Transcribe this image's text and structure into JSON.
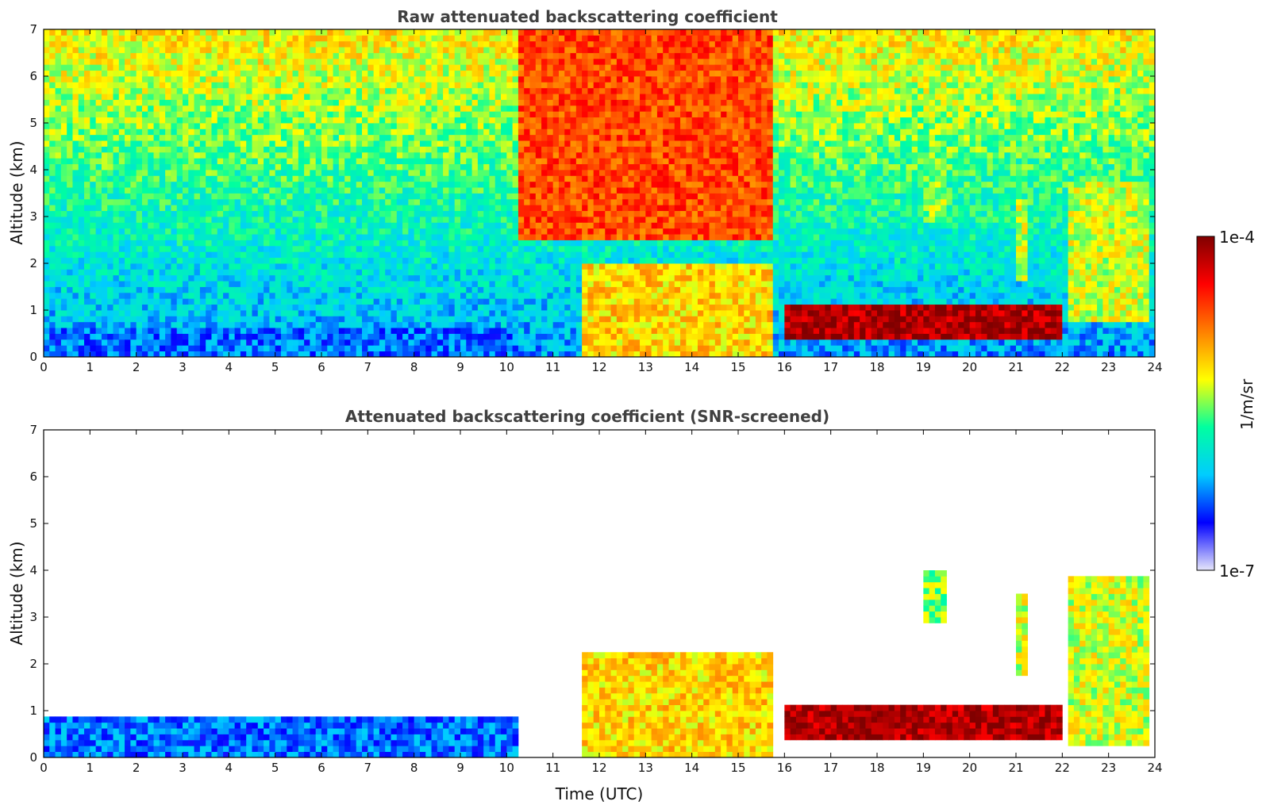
{
  "chart_data": [
    {
      "type": "heatmap",
      "title": "Raw attenuated backscattering coefficient",
      "xlabel": "",
      "ylabel": "Altitude (km)",
      "xlim": [
        0,
        24
      ],
      "ylim": [
        0,
        7
      ],
      "xticks": [
        "0",
        "1",
        "2",
        "3",
        "4",
        "5",
        "6",
        "7",
        "8",
        "9",
        "10",
        "11",
        "12",
        "13",
        "14",
        "15",
        "16",
        "17",
        "18",
        "19",
        "20",
        "21",
        "22",
        "23",
        "24"
      ],
      "yticks": [
        "0",
        "1",
        "2",
        "3",
        "4",
        "5",
        "6",
        "7"
      ],
      "screened": false,
      "features": [
        {
          "t0": 0,
          "t1": 10.2,
          "z0": 0,
          "z1": 0.6,
          "level": 0.22
        },
        {
          "t0": 10.2,
          "t1": 15.7,
          "z0": 2.5,
          "z1": 7,
          "level": 0.78
        },
        {
          "t0": 11.6,
          "t1": 15.7,
          "z0": 0,
          "z1": 2.0,
          "level": 0.62
        },
        {
          "t0": 16.0,
          "t1": 22.0,
          "z0": 0.4,
          "z1": 1.1,
          "level": 0.95
        },
        {
          "t0": 19.0,
          "t1": 19.5,
          "z0": 2.9,
          "z1": 4.2,
          "level": 0.5
        },
        {
          "t0": 21.0,
          "t1": 21.3,
          "z0": 1.6,
          "z1": 3.4,
          "level": 0.55
        },
        {
          "t0": 22.1,
          "t1": 23.9,
          "z0": 0.7,
          "z1": 3.8,
          "level": 0.55
        }
      ]
    },
    {
      "type": "heatmap",
      "title": "Attenuated backscattering coefficient (SNR-screened)",
      "xlabel": "Time (UTC)",
      "ylabel": "Altitude (km)",
      "xlim": [
        0,
        24
      ],
      "ylim": [
        0,
        7
      ],
      "xticks": [
        "0",
        "1",
        "2",
        "3",
        "4",
        "5",
        "6",
        "7",
        "8",
        "9",
        "10",
        "11",
        "12",
        "13",
        "14",
        "15",
        "16",
        "17",
        "18",
        "19",
        "20",
        "21",
        "22",
        "23",
        "24"
      ],
      "yticks": [
        "0",
        "1",
        "2",
        "3",
        "4",
        "5",
        "6",
        "7"
      ],
      "screened": true,
      "features": [
        {
          "t0": 0,
          "t1": 10.2,
          "z0": 0,
          "z1": 0.9,
          "level": 0.22
        },
        {
          "t0": 11.6,
          "t1": 15.7,
          "z0": 0,
          "z1": 2.2,
          "level": 0.62
        },
        {
          "t0": 16.0,
          "t1": 22.0,
          "z0": 0.4,
          "z1": 1.1,
          "level": 0.95
        },
        {
          "t0": 19.0,
          "t1": 19.5,
          "z0": 2.9,
          "z1": 4.0,
          "level": 0.5
        },
        {
          "t0": 21.0,
          "t1": 21.3,
          "z0": 1.7,
          "z1": 3.5,
          "level": 0.55
        },
        {
          "t0": 22.1,
          "t1": 23.9,
          "z0": 0.2,
          "z1": 3.9,
          "level": 0.55
        }
      ]
    }
  ],
  "colorbar": {
    "max_label": "1e-4",
    "min_label": "1e-7",
    "label": "1/m/sr",
    "colors": [
      "#e6e6fa",
      "#0000ff",
      "#00ccff",
      "#00ffa0",
      "#ffff00",
      "#ff8000",
      "#ff0000",
      "#800000"
    ]
  }
}
